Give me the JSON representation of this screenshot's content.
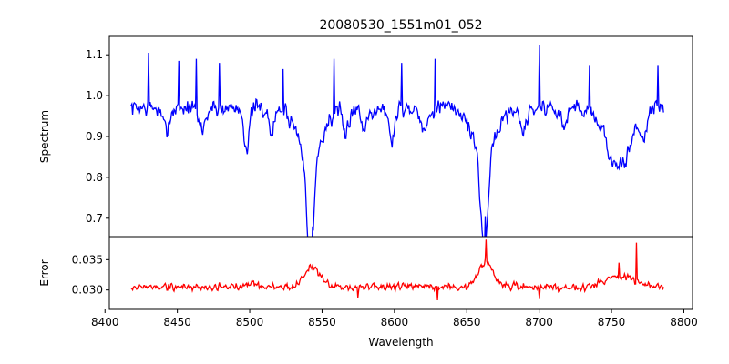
{
  "chart_data": {
    "type": "line",
    "title": "20080530_1551m01_052",
    "xlabel": "Wavelength",
    "xlim": [
      8403,
      8806
    ],
    "xticks": [
      8400,
      8450,
      8500,
      8550,
      8600,
      8650,
      8700,
      8750,
      8800
    ],
    "xtick_labels": [
      "8400",
      "8450",
      "8500",
      "8550",
      "8600",
      "8650",
      "8700",
      "8750",
      "8800"
    ],
    "panels": [
      {
        "name": "spectrum-panel",
        "ylabel": "Spectrum",
        "ylim": [
          0.655,
          1.145
        ],
        "yticks": [
          0.7,
          0.8,
          0.9,
          1.0,
          1.1
        ],
        "ytick_labels": [
          "0.7",
          "0.8",
          "0.9",
          "1.0",
          "1.1"
        ],
        "color": "#0000ff",
        "x_start": 8418,
        "x_end": 8786,
        "baseline": 0.97,
        "noise": 0.045,
        "features": [
          {
            "center": 8442,
            "depth": 0.05,
            "width": 2.5
          },
          {
            "center": 8467,
            "depth": 0.05,
            "width": 2.5
          },
          {
            "center": 8498,
            "depth": 0.1,
            "width": 1.8
          },
          {
            "center": 8515,
            "depth": 0.06,
            "width": 2.0
          },
          {
            "center": 8542,
            "depth": 0.27,
            "width": 2.2
          },
          {
            "center": 8542,
            "depth": 0.12,
            "width": 8.0
          },
          {
            "center": 8566,
            "depth": 0.07,
            "width": 2.0
          },
          {
            "center": 8579,
            "depth": 0.05,
            "width": 2.0
          },
          {
            "center": 8598,
            "depth": 0.08,
            "width": 2.0
          },
          {
            "center": 8621,
            "depth": 0.06,
            "width": 2.0
          },
          {
            "center": 8662,
            "depth": 0.25,
            "width": 2.2
          },
          {
            "center": 8662,
            "depth": 0.12,
            "width": 7.5
          },
          {
            "center": 8689,
            "depth": 0.06,
            "width": 2.0
          },
          {
            "center": 8717,
            "depth": 0.05,
            "width": 2.0
          },
          {
            "center": 8755,
            "depth": 0.15,
            "width": 8.0
          },
          {
            "center": 8772,
            "depth": 0.06,
            "width": 2.0
          }
        ],
        "spikes": [
          {
            "x": 8430,
            "y": 1.105
          },
          {
            "x": 8451,
            "y": 1.085
          },
          {
            "x": 8463,
            "y": 1.09
          },
          {
            "x": 8479,
            "y": 1.08
          },
          {
            "x": 8523,
            "y": 1.065
          },
          {
            "x": 8543.5,
            "y": 0.68
          },
          {
            "x": 8558,
            "y": 1.09
          },
          {
            "x": 8605,
            "y": 1.08
          },
          {
            "x": 8628,
            "y": 1.09
          },
          {
            "x": 8663,
            "y": 0.705
          },
          {
            "x": 8700,
            "y": 1.125
          },
          {
            "x": 8735,
            "y": 1.075
          },
          {
            "x": 8782,
            "y": 1.075
          }
        ],
        "seed": 7
      },
      {
        "name": "error-panel",
        "ylabel": "Error",
        "ylim": [
          0.0268,
          0.0388
        ],
        "yticks": [
          0.03,
          0.035
        ],
        "ytick_labels": [
          "0.030",
          "0.035"
        ],
        "color": "#ff0000",
        "x_start": 8418,
        "x_end": 8786,
        "baseline": 0.0305,
        "noise": 0.0013,
        "features": [
          {
            "center": 8543,
            "depth": -0.0035,
            "width": 5.0
          },
          {
            "center": 8663,
            "depth": -0.0042,
            "width": 4.5
          },
          {
            "center": 8755,
            "depth": -0.0018,
            "width": 10.0
          },
          {
            "center": 8500,
            "depth": -0.0008,
            "width": 4.0
          }
        ],
        "spikes": [
          {
            "x": 8663.5,
            "y": 0.0383
          },
          {
            "x": 8767,
            "y": 0.0378
          },
          {
            "x": 8755,
            "y": 0.0345
          },
          {
            "x": 8700,
            "y": 0.0285
          },
          {
            "x": 8630,
            "y": 0.0283
          },
          {
            "x": 8575,
            "y": 0.0287
          }
        ],
        "seed": 19
      }
    ]
  }
}
